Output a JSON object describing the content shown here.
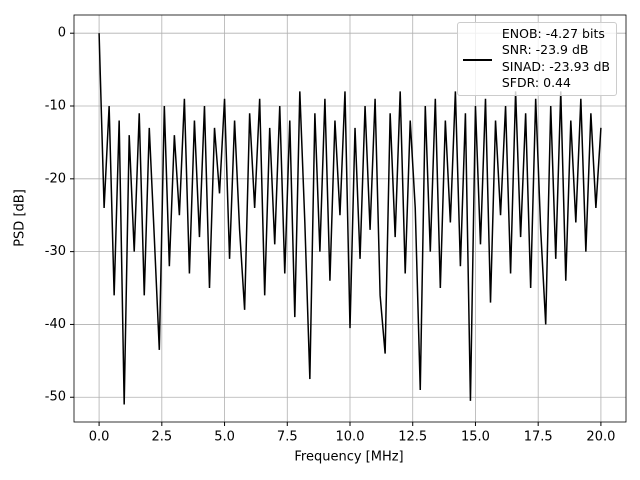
{
  "chart_data": {
    "type": "line",
    "xlabel": "Frequency [MHz]",
    "ylabel": "PSD [dB]",
    "x": [
      0,
      0.2,
      0.4,
      0.6,
      0.8,
      1.0,
      1.2,
      1.4,
      1.6,
      1.8,
      2.0,
      2.2,
      2.4,
      2.6,
      2.8,
      3.0,
      3.2,
      3.4,
      3.6,
      3.8,
      4.0,
      4.2,
      4.4,
      4.6,
      4.8,
      5.0,
      5.2,
      5.4,
      5.6,
      5.8,
      6.0,
      6.2,
      6.4,
      6.6,
      6.8,
      7.0,
      7.2,
      7.4,
      7.6,
      7.8,
      8.0,
      8.2,
      8.4,
      8.6,
      8.8,
      9.0,
      9.2,
      9.4,
      9.6,
      9.8,
      10.0,
      10.2,
      10.4,
      10.6,
      10.8,
      11.0,
      11.2,
      11.4,
      11.6,
      11.8,
      12.0,
      12.2,
      12.4,
      12.6,
      12.8,
      13.0,
      13.2,
      13.4,
      13.6,
      13.8,
      14.0,
      14.2,
      14.4,
      14.6,
      14.8,
      15.0,
      15.2,
      15.4,
      15.6,
      15.8,
      16.0,
      16.2,
      16.4,
      16.6,
      16.8,
      17.0,
      17.2,
      17.4,
      17.6,
      17.8,
      18.0,
      18.2,
      18.4,
      18.6,
      18.8,
      19.0,
      19.2,
      19.4,
      19.6,
      19.8,
      20.0
    ],
    "series": [
      {
        "name": "ENOB: -4.27 bits\nSNR: -23.9 dB\nSINAD: -23.93 dB\nSFDR: 0.44",
        "color": "#000000",
        "values": [
          0,
          -24,
          -10,
          -36,
          -12,
          -51,
          -14,
          -30,
          -11,
          -36,
          -13,
          -28,
          -43.5,
          -10,
          -32,
          -14,
          -25,
          -9,
          -33,
          -12,
          -28,
          -10,
          -35,
          -13,
          -22,
          -9,
          -31,
          -12,
          -27,
          -38,
          -11,
          -24,
          -9,
          -36,
          -13,
          -29,
          -10,
          -33,
          -12,
          -39,
          -8,
          -26,
          -47.5,
          -11,
          -30,
          -9,
          -34,
          -12,
          -25,
          -8,
          -40.5,
          -13,
          -31,
          -10,
          -27,
          -9,
          -36,
          -44,
          -11,
          -28,
          -8,
          -33,
          -12,
          -24,
          -49,
          -10,
          -30,
          -9,
          -35,
          -12,
          -26,
          -8,
          -32,
          -11,
          -50.5,
          -10,
          -29,
          -9,
          -37,
          -12,
          -25,
          -10,
          -33,
          -8,
          -28,
          -11,
          -35,
          -9,
          -27,
          -40,
          -10,
          -31,
          -8,
          -34,
          -12,
          -26,
          -9,
          -30,
          -11,
          -24,
          -13
        ]
      }
    ],
    "xlim": [
      -1,
      21
    ],
    "ylim": [
      -53.4,
      2.5
    ],
    "xticks": [
      {
        "value": 0,
        "label": "0.0"
      },
      2.5,
      {
        "value": 5,
        "label": "5.0"
      },
      7.5,
      {
        "value": 10,
        "label": "10.0"
      },
      12.5,
      {
        "value": 15,
        "label": "15.0"
      },
      17.5,
      {
        "value": 20,
        "label": "20.0"
      }
    ],
    "yticks": [
      0,
      -10,
      -20,
      -30,
      -40,
      -50
    ],
    "grid": true,
    "legend": "upper right"
  }
}
